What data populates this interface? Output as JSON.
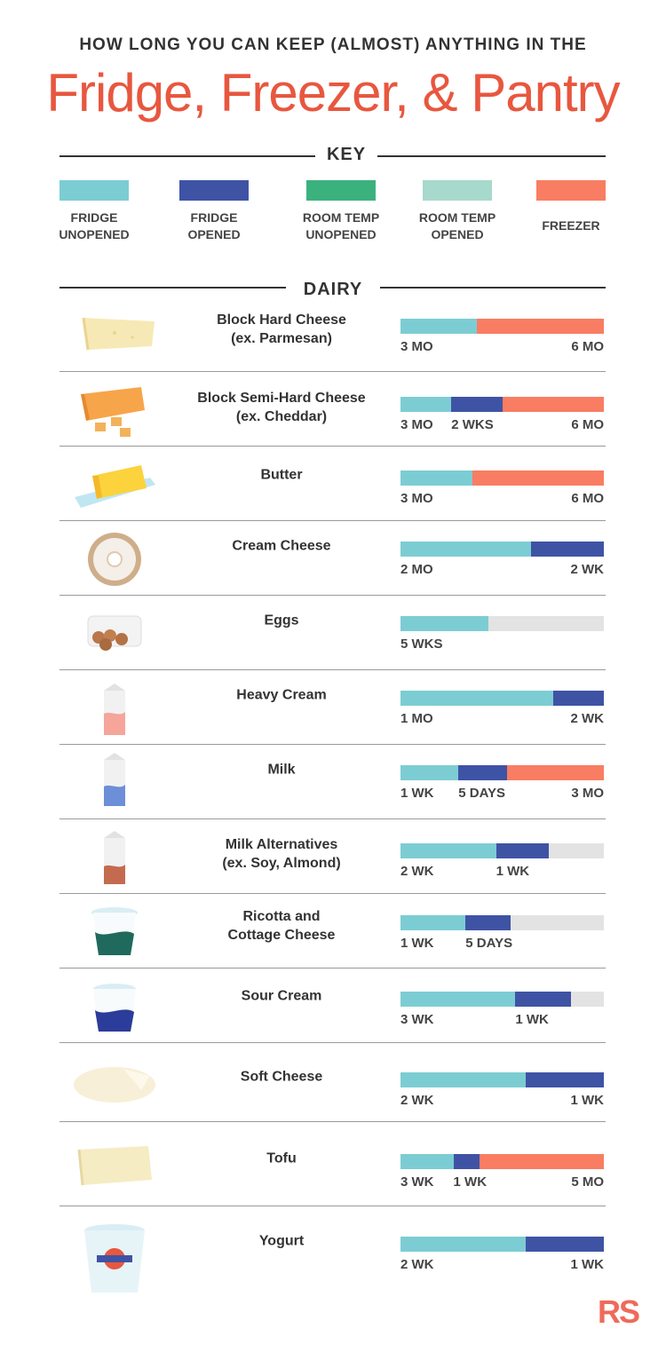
{
  "header": {
    "subtitle": "HOW LONG YOU CAN KEEP (ALMOST) ANYTHING IN THE",
    "title": "Fridge, Freezer, & Pantry"
  },
  "key": {
    "title": "KEY",
    "items": [
      {
        "label_line1": "FRIDGE",
        "label_line2": "UNOPENED",
        "color": "#7ccdd3"
      },
      {
        "label_line1": "FRIDGE",
        "label_line2": "OPENED",
        "color": "#3f53a5"
      },
      {
        "label_line1": "ROOM TEMP",
        "label_line2": "UNOPENED",
        "color": "#3bb27d"
      },
      {
        "label_line1": "ROOM TEMP",
        "label_line2": "OPENED",
        "color": "#a7d9cc"
      },
      {
        "label_line1": "FREEZER",
        "label_line2": "",
        "color": "#f97d62"
      }
    ]
  },
  "section": {
    "title": "DAIRY"
  },
  "logo": "RS",
  "chart_data": {
    "type": "bar",
    "orientation": "horizontal-stacked-timeline",
    "title": "Dairy",
    "categories": [
      "fridge_unopened",
      "fridge_opened",
      "room_temp_unopened",
      "room_temp_opened",
      "freezer"
    ],
    "rows": [
      {
        "name_line1": "Block Hard Cheese",
        "name_line2": "(ex. Parmesan)",
        "icon": "parmesan-icon",
        "segments": [
          {
            "type": "fridge_unopened",
            "fraction": 0.375,
            "label": "3 MO"
          },
          {
            "type": "freezer",
            "fraction": 0.625,
            "label": "6 MO"
          }
        ]
      },
      {
        "name_line1": "Block Semi-Hard Cheese",
        "name_line2": "(ex. Cheddar)",
        "icon": "cheddar-icon",
        "segments": [
          {
            "type": "fridge_unopened",
            "fraction": 0.25,
            "label": "3 MO"
          },
          {
            "type": "fridge_opened",
            "fraction": 0.25,
            "label": "2 WKS"
          },
          {
            "type": "freezer",
            "fraction": 0.5,
            "label": "6 MO"
          }
        ]
      },
      {
        "name_line1": "Butter",
        "name_line2": "",
        "icon": "butter-icon",
        "segments": [
          {
            "type": "fridge_unopened",
            "fraction": 0.355,
            "label": "3 MO"
          },
          {
            "type": "freezer",
            "fraction": 0.645,
            "label": "6 MO"
          }
        ]
      },
      {
        "name_line1": "Cream Cheese",
        "name_line2": "",
        "icon": "cream-cheese-icon",
        "segments": [
          {
            "type": "fridge_unopened",
            "fraction": 0.64,
            "label": "2 MO"
          },
          {
            "type": "fridge_opened",
            "fraction": 0.36,
            "label": "2 WK"
          }
        ]
      },
      {
        "name_line1": "Eggs",
        "name_line2": "",
        "icon": "eggs-icon",
        "segments": [
          {
            "type": "fridge_unopened",
            "fraction": 0.43,
            "label": "5 WKS"
          }
        ]
      },
      {
        "name_line1": "Heavy Cream",
        "name_line2": "",
        "icon": "heavy-cream-carton-icon",
        "segments": [
          {
            "type": "fridge_unopened",
            "fraction": 0.75,
            "label": "1 MO"
          },
          {
            "type": "fridge_opened",
            "fraction": 0.25,
            "label": "2 WK"
          }
        ]
      },
      {
        "name_line1": "Milk",
        "name_line2": "",
        "icon": "milk-carton-icon",
        "segments": [
          {
            "type": "fridge_unopened",
            "fraction": 0.285,
            "label": "1 WK"
          },
          {
            "type": "fridge_opened",
            "fraction": 0.24,
            "label": "5 DAYS"
          },
          {
            "type": "freezer",
            "fraction": 0.475,
            "label": "3 MO"
          }
        ]
      },
      {
        "name_line1": "Milk Alternatives",
        "name_line2": "(ex. Soy, Almond)",
        "icon": "milk-alternative-carton-icon",
        "segments": [
          {
            "type": "fridge_unopened",
            "fraction": 0.47,
            "label": "2 WK"
          },
          {
            "type": "fridge_opened",
            "fraction": 0.255,
            "label": "1 WK"
          }
        ]
      },
      {
        "name_line1": "Ricotta and",
        "name_line2": "Cottage Cheese",
        "icon": "ricotta-tub-icon",
        "segments": [
          {
            "type": "fridge_unopened",
            "fraction": 0.32,
            "label": "1 WK"
          },
          {
            "type": "fridge_opened",
            "fraction": 0.22,
            "label": "5 DAYS"
          }
        ]
      },
      {
        "name_line1": "Sour Cream",
        "name_line2": "",
        "icon": "sour-cream-tub-icon",
        "segments": [
          {
            "type": "fridge_unopened",
            "fraction": 0.565,
            "label": "3 WK"
          },
          {
            "type": "fridge_opened",
            "fraction": 0.27,
            "label": "1 WK"
          }
        ]
      },
      {
        "name_line1": "Soft Cheese",
        "name_line2": "",
        "icon": "soft-cheese-icon",
        "segments": [
          {
            "type": "fridge_unopened",
            "fraction": 0.615,
            "label": "2 WK"
          },
          {
            "type": "fridge_opened",
            "fraction": 0.385,
            "label": "1 WK"
          }
        ]
      },
      {
        "name_line1": "Tofu",
        "name_line2": "",
        "icon": "tofu-icon",
        "segments": [
          {
            "type": "fridge_unopened",
            "fraction": 0.26,
            "label": "3 WK"
          },
          {
            "type": "fridge_opened",
            "fraction": 0.13,
            "label": "1 WK"
          },
          {
            "type": "freezer",
            "fraction": 0.61,
            "label": "5 MO"
          }
        ]
      },
      {
        "name_line1": "Yogurt",
        "name_line2": "",
        "icon": "yogurt-tub-icon",
        "segments": [
          {
            "type": "fridge_unopened",
            "fraction": 0.615,
            "label": "2 WK"
          },
          {
            "type": "fridge_opened",
            "fraction": 0.385,
            "label": "1 WK"
          }
        ]
      }
    ]
  }
}
